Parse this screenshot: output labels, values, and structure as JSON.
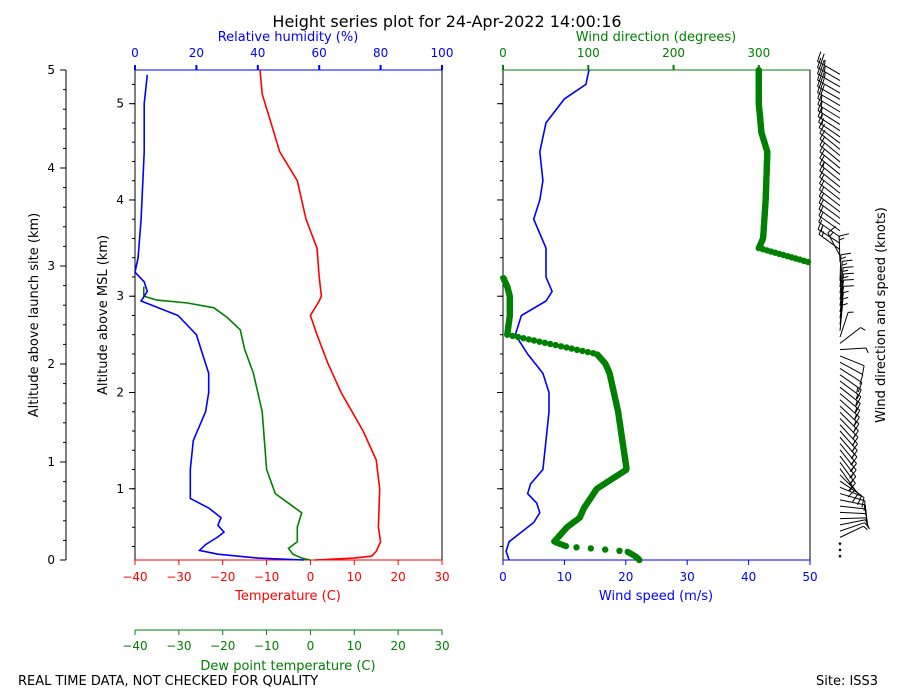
{
  "title": "Height series plot for 24-Apr-2022 14:00:16",
  "footer_left": "REAL TIME DATA, NOT CHECKED FOR QUALITY",
  "footer_right": "Site: ISS3",
  "colors": {
    "red": "#ff0000",
    "blue": "#0000ff",
    "green": "#008000",
    "black": "#000000"
  },
  "chart_data": [
    {
      "type": "line",
      "name": "thermo-panel",
      "axes": {
        "launch_altitude": {
          "label": "Altitude above launch site (km)",
          "range": [
            0,
            5
          ],
          "ticks": [
            0,
            1,
            2,
            3,
            4,
            5
          ]
        },
        "msl_altitude": {
          "label": "Altitude above MSL (km)",
          "range": [
            0.26,
            5.35
          ],
          "ticks": [
            1,
            2,
            3,
            4,
            5
          ]
        },
        "temperature": {
          "label": "Temperature (C)",
          "range": [
            -40,
            30
          ],
          "ticks": [
            -40,
            -30,
            -20,
            -10,
            0,
            10,
            20,
            30
          ]
        },
        "dewpoint": {
          "label": "Dew point temperature (C)",
          "range": [
            -40,
            30
          ],
          "ticks": [
            -40,
            -30,
            -20,
            -10,
            0,
            10,
            20,
            30
          ]
        },
        "humidity": {
          "label": "Relative humidity (%)",
          "range": [
            0,
            100
          ],
          "ticks": [
            0,
            20,
            40,
            60,
            80,
            100
          ]
        }
      },
      "series": [
        {
          "name": "Temperature",
          "axis": "temperature",
          "color": "#ff0000",
          "points": [
            [
              0.26,
              1
            ],
            [
              0.28,
              10
            ],
            [
              0.3,
              14
            ],
            [
              0.35,
              15
            ],
            [
              0.45,
              16
            ],
            [
              0.6,
              15.5
            ],
            [
              1.0,
              15.8
            ],
            [
              1.3,
              15
            ],
            [
              1.6,
              12
            ],
            [
              2.0,
              7
            ],
            [
              2.3,
              4
            ],
            [
              2.6,
              1.5
            ],
            [
              2.8,
              0
            ],
            [
              2.95,
              2
            ],
            [
              3.0,
              2.5
            ],
            [
              3.2,
              2
            ],
            [
              3.5,
              1.5
            ],
            [
              3.8,
              -1
            ],
            [
              4.2,
              -3
            ],
            [
              4.5,
              -7
            ],
            [
              4.8,
              -9
            ],
            [
              5.1,
              -11
            ],
            [
              5.35,
              -11.5
            ]
          ]
        },
        {
          "name": "Dew point",
          "axis": "dewpoint",
          "color": "#008000",
          "points": [
            [
              0.26,
              0
            ],
            [
              0.28,
              -2
            ],
            [
              0.32,
              -4
            ],
            [
              0.38,
              -5
            ],
            [
              0.45,
              -3
            ],
            [
              0.6,
              -3
            ],
            [
              0.75,
              -2
            ],
            [
              0.85,
              -5
            ],
            [
              0.95,
              -8
            ],
            [
              1.2,
              -10
            ],
            [
              1.5,
              -10.5
            ],
            [
              1.8,
              -11
            ],
            [
              2.0,
              -12
            ],
            [
              2.2,
              -13
            ],
            [
              2.45,
              -15
            ],
            [
              2.65,
              -16
            ],
            [
              2.78,
              -19
            ],
            [
              2.88,
              -22
            ],
            [
              2.93,
              -28
            ],
            [
              2.96,
              -35
            ],
            [
              3.0,
              -38
            ],
            [
              3.1,
              -38
            ]
          ]
        },
        {
          "name": "Relative humidity",
          "axis": "humidity",
          "color": "#0000ff",
          "points": [
            [
              0.26,
              55
            ],
            [
              0.28,
              40
            ],
            [
              0.32,
              27
            ],
            [
              0.36,
              21
            ],
            [
              0.42,
              23
            ],
            [
              0.5,
              27
            ],
            [
              0.55,
              29
            ],
            [
              0.62,
              27
            ],
            [
              0.7,
              28
            ],
            [
              0.8,
              24
            ],
            [
              0.9,
              18
            ],
            [
              1.2,
              18
            ],
            [
              1.5,
              19
            ],
            [
              1.8,
              23
            ],
            [
              2.0,
              24
            ],
            [
              2.2,
              24
            ],
            [
              2.4,
              22
            ],
            [
              2.6,
              20
            ],
            [
              2.8,
              14
            ],
            [
              2.95,
              2
            ],
            [
              3.05,
              4
            ],
            [
              3.15,
              3
            ],
            [
              3.25,
              0
            ],
            [
              3.4,
              1
            ],
            [
              3.8,
              2
            ],
            [
              4.5,
              3
            ],
            [
              5.0,
              3
            ],
            [
              5.3,
              4
            ]
          ]
        }
      ]
    },
    {
      "type": "line",
      "name": "wind-panel",
      "axes": {
        "wind_speed": {
          "label": "Wind speed (m/s)",
          "range": [
            0,
            50
          ],
          "ticks": [
            0,
            10,
            20,
            30,
            40,
            50
          ]
        },
        "wind_direction": {
          "label": "Wind direction (degrees)",
          "range": [
            0,
            360
          ],
          "ticks": [
            0,
            100,
            200,
            300
          ]
        },
        "barbs": {
          "label": "Wind direction and speed (knots)"
        }
      },
      "series": [
        {
          "name": "Wind speed",
          "axis": "wind_speed",
          "color": "#0000ff",
          "points": [
            [
              0.26,
              1
            ],
            [
              0.35,
              0.5
            ],
            [
              0.45,
              1
            ],
            [
              0.55,
              3
            ],
            [
              0.65,
              5
            ],
            [
              0.75,
              6
            ],
            [
              0.85,
              5.5
            ],
            [
              0.95,
              4
            ],
            [
              1.05,
              4.5
            ],
            [
              1.2,
              6.5
            ],
            [
              1.5,
              7
            ],
            [
              1.8,
              7.5
            ],
            [
              2.0,
              7.5
            ],
            [
              2.2,
              6.5
            ],
            [
              2.4,
              4
            ],
            [
              2.6,
              2
            ],
            [
              2.8,
              3
            ],
            [
              2.95,
              7
            ],
            [
              3.05,
              8
            ],
            [
              3.2,
              7
            ],
            [
              3.5,
              7
            ],
            [
              3.8,
              5
            ],
            [
              4.0,
              6
            ],
            [
              4.2,
              6.5
            ],
            [
              4.5,
              6
            ],
            [
              4.8,
              7
            ],
            [
              5.05,
              10
            ],
            [
              5.2,
              13.5
            ],
            [
              5.35,
              14
            ]
          ]
        },
        {
          "name": "Wind direction",
          "axis": "wind_direction",
          "color": "#008000",
          "points": [
            [
              0.26,
              160
            ],
            [
              0.3,
              155
            ],
            [
              0.35,
              145
            ],
            [
              0.4,
              75
            ],
            [
              0.45,
              60
            ],
            [
              0.5,
              65
            ],
            [
              0.6,
              75
            ],
            [
              0.7,
              90
            ],
            [
              0.8,
              95
            ],
            [
              1.0,
              110
            ],
            [
              1.2,
              145
            ],
            [
              1.5,
              140
            ],
            [
              1.8,
              135
            ],
            [
              2.0,
              130
            ],
            [
              2.2,
              125
            ],
            [
              2.3,
              120
            ],
            [
              2.4,
              110
            ],
            [
              2.6,
              5
            ],
            [
              2.8,
              8
            ],
            [
              3.0,
              8
            ],
            [
              3.1,
              5
            ],
            [
              3.2,
              0
            ],
            [
              3.35,
              360
            ],
            [
              3.5,
              300
            ],
            [
              3.6,
              305
            ],
            [
              4.0,
              308
            ],
            [
              4.5,
              310
            ],
            [
              4.7,
              303
            ],
            [
              5.0,
              300
            ],
            [
              5.35,
              300
            ]
          ]
        }
      ]
    }
  ]
}
